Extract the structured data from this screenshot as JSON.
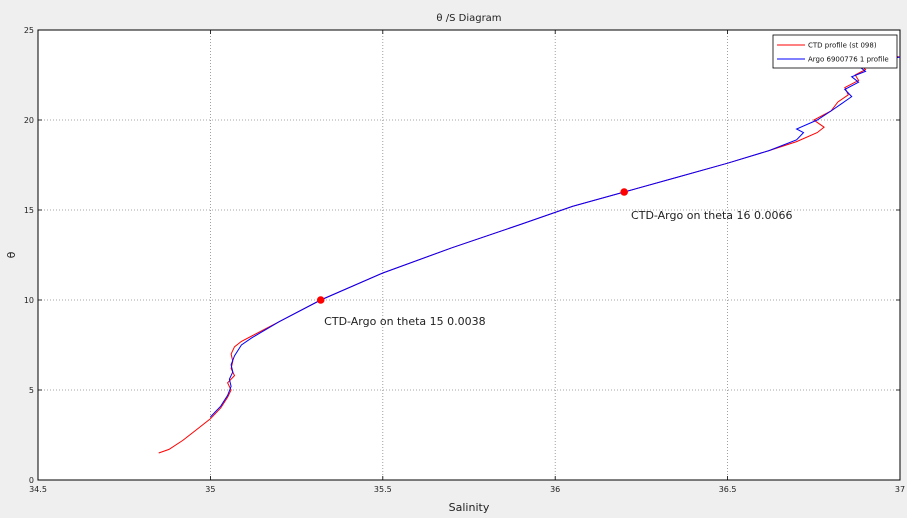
{
  "chart_data": {
    "type": "line",
    "title": "θ /S Diagram",
    "xlabel": "Salinity",
    "ylabel": "θ",
    "xlim": [
      34.5,
      37
    ],
    "ylim": [
      0,
      25
    ],
    "xticks": [
      "34.5",
      "35",
      "35.5",
      "36",
      "36.5",
      "37"
    ],
    "yticks": [
      "0",
      "5",
      "10",
      "15",
      "20",
      "25"
    ],
    "grid": true,
    "legend_position": "top-right",
    "series": [
      {
        "name": "CTD profile (st 098)",
        "color": "#ff0000",
        "x": [
          34.85,
          34.88,
          34.92,
          34.96,
          35.0,
          35.03,
          35.05,
          35.06,
          35.05,
          35.07,
          35.06,
          35.065,
          35.06,
          35.07,
          35.09,
          35.12,
          35.2,
          35.32,
          35.5,
          35.7,
          35.9,
          36.05,
          36.2,
          36.35,
          36.5,
          36.62,
          36.7,
          36.76,
          36.78,
          36.75,
          36.8,
          36.82,
          36.85,
          36.84,
          36.88,
          36.87,
          36.9,
          36.89,
          36.92,
          36.95,
          36.98,
          37.0,
          36.98,
          36.75
        ],
        "y": [
          1.5,
          1.7,
          2.2,
          2.8,
          3.4,
          4.0,
          4.6,
          5.0,
          5.4,
          5.8,
          6.2,
          6.6,
          7.0,
          7.4,
          7.7,
          8.0,
          8.8,
          10.0,
          11.5,
          12.9,
          14.2,
          15.2,
          16.0,
          16.8,
          17.6,
          18.3,
          18.8,
          19.3,
          19.6,
          20.0,
          20.5,
          21.0,
          21.4,
          21.8,
          22.2,
          22.5,
          22.8,
          23.0,
          23.2,
          23.35,
          23.45,
          23.5,
          23.55,
          23.6
        ]
      },
      {
        "name": "Argo 6900776 1 profile",
        "color": "#0000ff",
        "x": [
          35.0,
          35.03,
          35.05,
          35.06,
          35.055,
          35.065,
          35.06,
          35.07,
          35.09,
          35.12,
          35.2,
          35.32,
          35.5,
          35.7,
          35.9,
          36.05,
          36.2,
          36.35,
          36.5,
          36.62,
          36.7,
          36.72,
          36.7,
          36.76,
          36.8,
          36.83,
          36.86,
          36.84,
          36.88,
          36.86,
          36.9,
          36.88,
          36.93,
          36.97,
          37.0
        ],
        "y": [
          3.5,
          4.1,
          4.7,
          5.2,
          5.6,
          6.0,
          6.4,
          6.9,
          7.5,
          7.9,
          8.8,
          10.0,
          11.5,
          12.9,
          14.2,
          15.2,
          16.0,
          16.8,
          17.6,
          18.3,
          18.9,
          19.3,
          19.5,
          20.0,
          20.5,
          20.9,
          21.3,
          21.7,
          22.1,
          22.4,
          22.7,
          23.0,
          23.2,
          23.4,
          23.5
        ]
      }
    ],
    "markers": [
      {
        "x": 35.32,
        "y": 10.0,
        "color": "#ff0000"
      },
      {
        "x": 36.2,
        "y": 16.0,
        "color": "#ff0000"
      }
    ],
    "annotations": [
      {
        "text": "CTD-Argo on theta 15 0.0038",
        "x": 35.33,
        "y": 8.6
      },
      {
        "text": "CTD-Argo on theta 16 0.0066",
        "x": 36.22,
        "y": 14.5
      }
    ]
  }
}
